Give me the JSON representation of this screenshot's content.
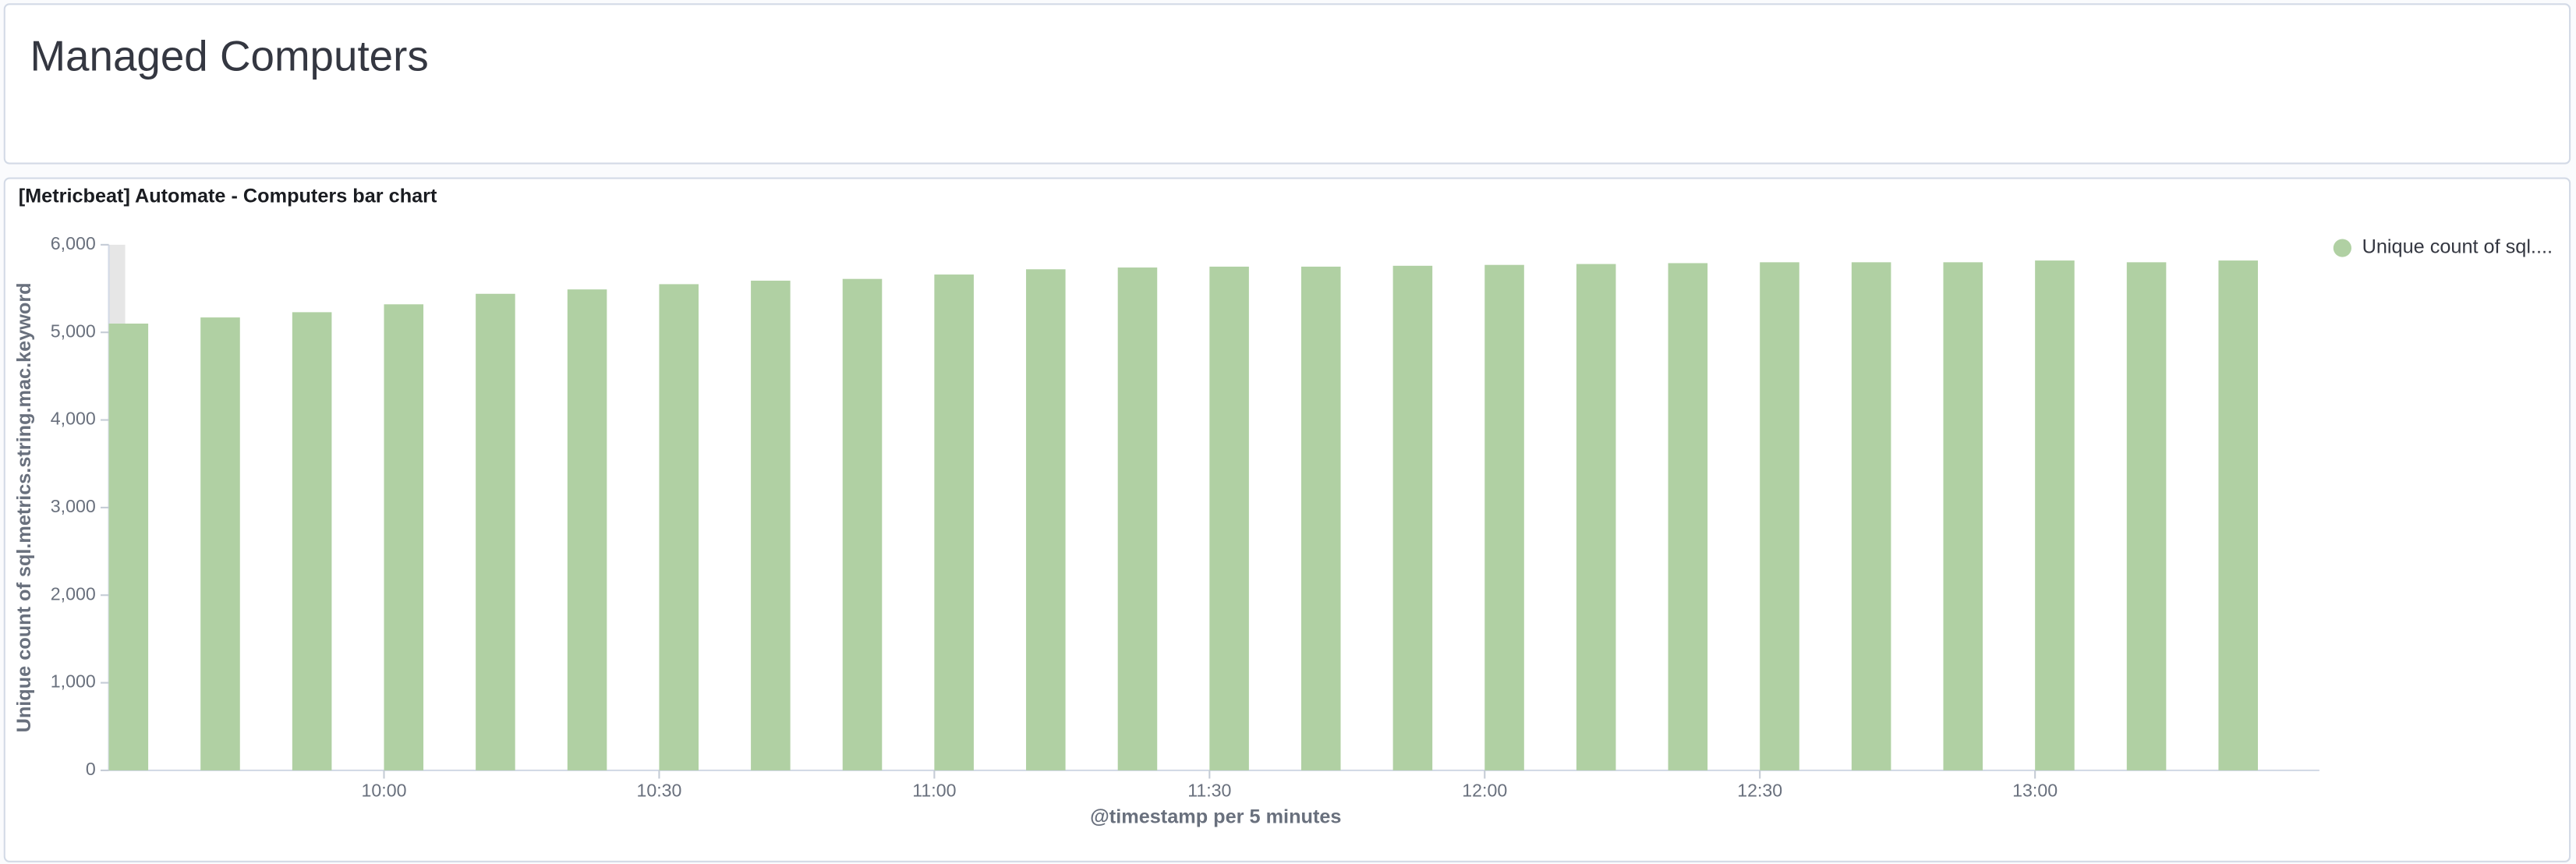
{
  "dashboard_title": "Managed Computers",
  "chart_data": {
    "type": "bar",
    "title": "[Metricbeat] Automate - Computers bar chart",
    "x_label": "@timestamp per 5 minutes",
    "y_label": "Unique count of sql.metrics.string.mac.keyword",
    "x": [
      "09:30",
      "09:40",
      "09:50",
      "10:00",
      "10:10",
      "10:20",
      "10:30",
      "10:40",
      "10:50",
      "11:00",
      "11:10",
      "11:20",
      "11:30",
      "11:40",
      "11:50",
      "12:00",
      "12:10",
      "12:20",
      "12:30",
      "12:40",
      "12:50",
      "13:00",
      "13:10",
      "13:20"
    ],
    "series": [
      {
        "name": "Unique count of sql....",
        "color": "#b0d0a3",
        "values": [
          5100,
          5170,
          5230,
          5320,
          5440,
          5490,
          5550,
          5590,
          5610,
          5660,
          5720,
          5740,
          5750,
          5750,
          5760,
          5770,
          5780,
          5790,
          5800,
          5800,
          5800,
          5820,
          5800,
          5820
        ]
      }
    ],
    "xlim": [
      "09:30",
      "13:31"
    ],
    "xticks": [
      "10:00",
      "10:30",
      "11:00",
      "11:30",
      "12:00",
      "12:30",
      "13:00"
    ],
    "ylim": [
      0,
      6000
    ],
    "yticks": [
      0,
      {
        "value": 1000,
        "label": "1,000"
      },
      {
        "value": 2000,
        "label": "2,000"
      },
      {
        "value": 3000,
        "label": "3,000"
      },
      {
        "value": 4000,
        "label": "4,000"
      },
      {
        "value": 5000,
        "label": "5,000"
      },
      {
        "value": 6000,
        "label": "6,000"
      }
    ],
    "legend": "top-right"
  }
}
